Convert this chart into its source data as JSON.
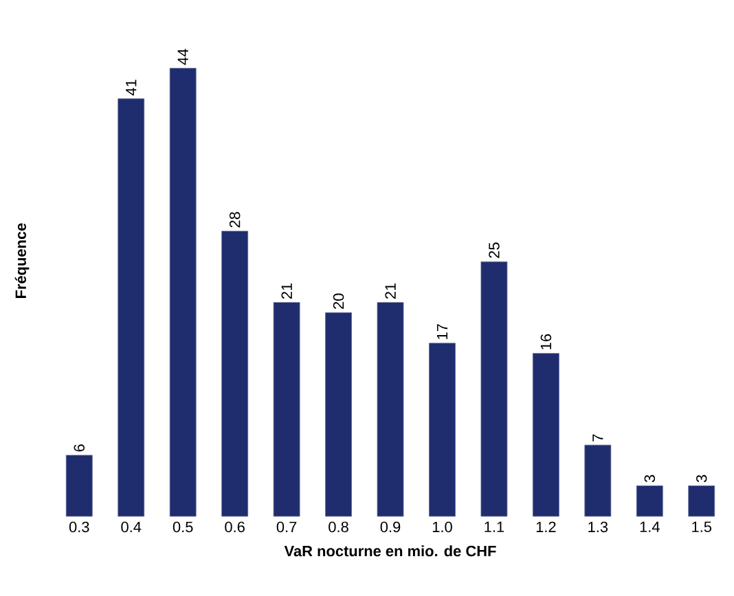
{
  "chart_data": {
    "type": "bar",
    "xlabel": "VaR nocturne en mio. de CHF",
    "ylabel": "Fréquence",
    "categories": [
      "0.3",
      "0.4",
      "0.5",
      "0.6",
      "0.7",
      "0.8",
      "0.9",
      "1.0",
      "1.1",
      "1.2",
      "1.3",
      "1.4",
      "1.5"
    ],
    "values": [
      6,
      41,
      44,
      28,
      21,
      20,
      21,
      17,
      25,
      16,
      7,
      3,
      3
    ],
    "color": "#1f2d6e",
    "data_labels": true,
    "grid": false,
    "tick_labels": "x"
  }
}
